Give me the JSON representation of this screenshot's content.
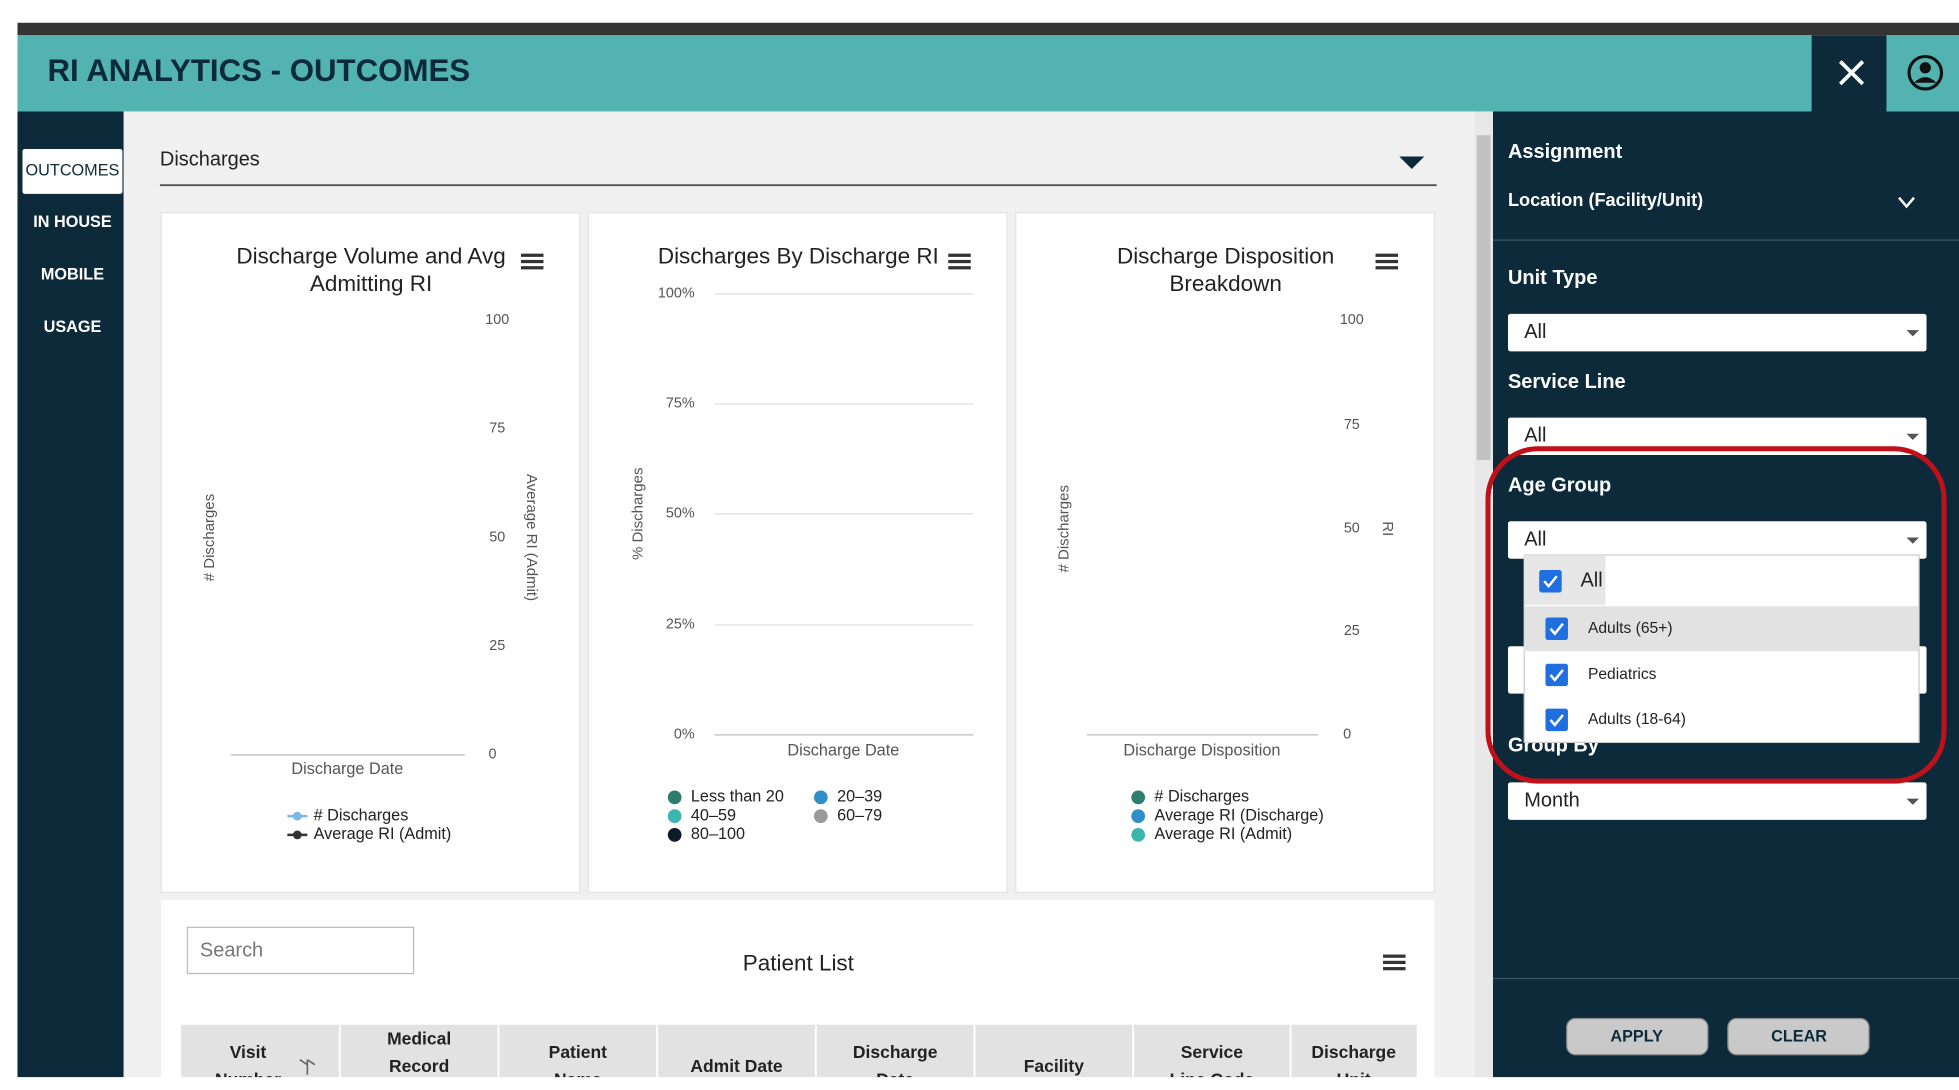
{
  "header": {
    "title": "RI ANALYTICS - OUTCOMES"
  },
  "nav": [
    "OUTCOMES",
    "IN HOUSE",
    "MOBILE",
    "USAGE"
  ],
  "section": "Discharges",
  "panels": [
    {
      "title": [
        "Discharge Volume and Avg",
        "Admitting RI"
      ],
      "y_label": "# Discharges",
      "y2_label": "Average RI (Admit)",
      "y2_ticks": [
        "100",
        "75",
        "50",
        "25",
        "0"
      ],
      "x_label": "Discharge Date",
      "legend": [
        "# Discharges",
        "Average RI (Admit)"
      ]
    },
    {
      "title": [
        "Discharges By Discharge RI"
      ],
      "y_label": "% Discharges",
      "y_ticks": [
        "100%",
        "75%",
        "50%",
        "25%",
        "0%"
      ],
      "x_label": "Discharge Date",
      "legend": [
        "Less than 20",
        "20–39",
        "40–59",
        "60–79",
        "80–100"
      ]
    },
    {
      "title": [
        "Discharge Disposition",
        "Breakdown"
      ],
      "y_label": "# Discharges",
      "y2_label": "RI",
      "y2_ticks": [
        "100",
        "75",
        "50",
        "25",
        "0"
      ],
      "x_label": "Discharge Disposition",
      "legend": [
        "# Discharges",
        "Average RI (Discharge)",
        "Average RI (Admit)"
      ]
    }
  ],
  "patient_list": {
    "search": "Search",
    "title": "Patient List",
    "columns": [
      [
        "Visit",
        "Number"
      ],
      [
        "Medical",
        "Record"
      ],
      [
        "Patient",
        "Name"
      ],
      [
        "Admit Date"
      ],
      [
        "Discharge",
        "Date"
      ],
      [
        "Facility"
      ],
      [
        "Service",
        "Line Code"
      ],
      [
        "Discharge",
        "Unit"
      ]
    ]
  },
  "filters": {
    "assignment": "Assignment",
    "location": "Location (Facility/Unit)",
    "unit_type": {
      "label": "Unit Type",
      "value": "All"
    },
    "service_line": {
      "label": "Service Line",
      "value": "All"
    },
    "age_group": {
      "label": "Age Group",
      "value": "All",
      "options": [
        "All",
        "Adults (65+)",
        "Pediatrics",
        "Adults (18-64)"
      ]
    },
    "group_by": {
      "label": "Group By",
      "value": "Month"
    },
    "buttons": [
      "APPLY",
      "CLEAR"
    ]
  }
}
